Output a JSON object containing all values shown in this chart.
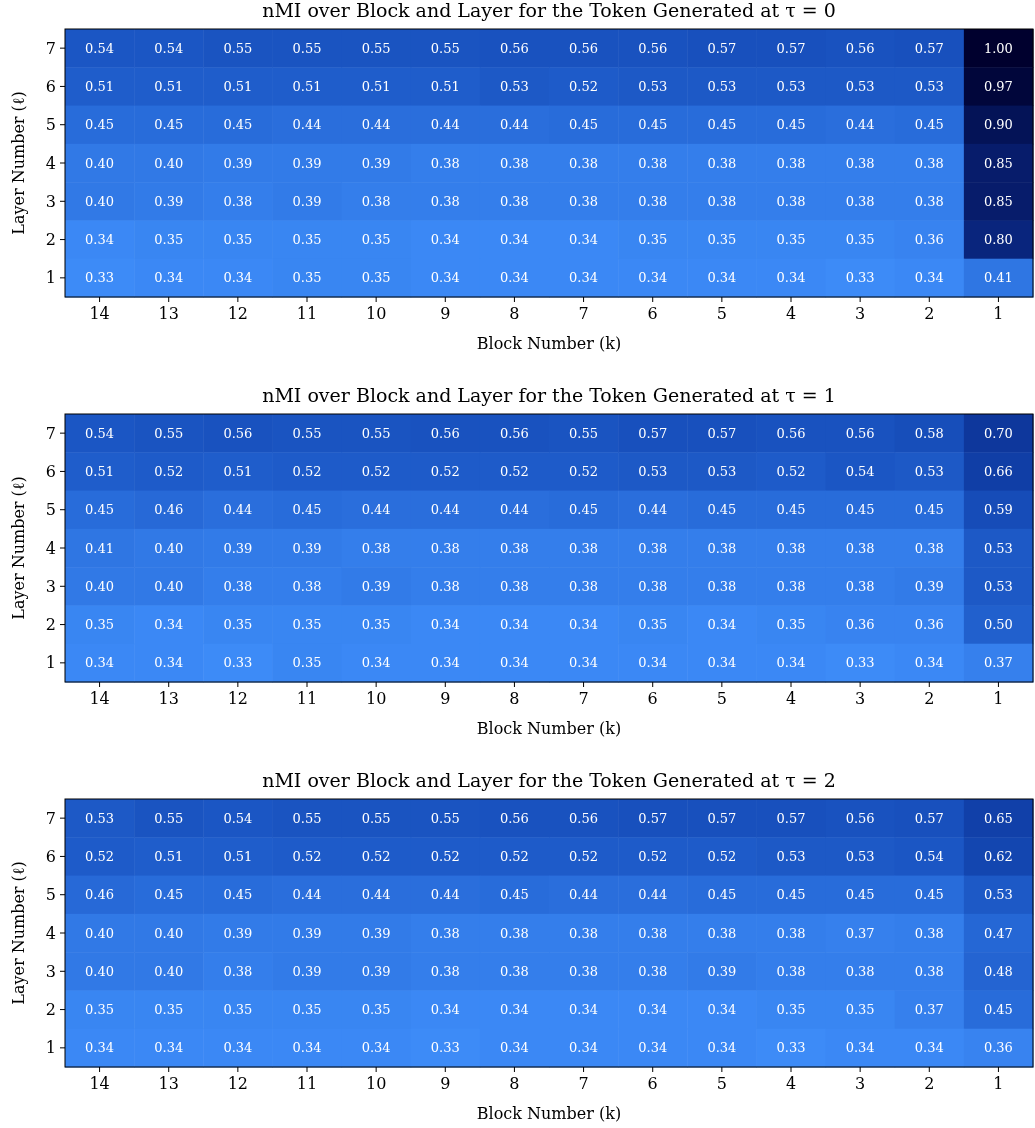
{
  "chart_data": [
    {
      "type": "heatmap",
      "title": "nMI over Block and Layer for the Token Generated at τ = 0",
      "xlabel": "Block Number (k)",
      "ylabel": "Layer Number (ℓ)",
      "categories": [
        "14",
        "13",
        "12",
        "11",
        "10",
        "9",
        "8",
        "7",
        "6",
        "5",
        "4",
        "3",
        "2",
        "1"
      ],
      "y_categories": [
        "7",
        "6",
        "5",
        "4",
        "3",
        "2",
        "1"
      ],
      "data_labels": true,
      "cells": [
        [
          0.54,
          0.54,
          0.55,
          0.55,
          0.55,
          0.55,
          0.56,
          0.56,
          0.56,
          0.57,
          0.57,
          0.56,
          0.57,
          1.0
        ],
        [
          0.51,
          0.51,
          0.51,
          0.51,
          0.51,
          0.51,
          0.53,
          0.52,
          0.53,
          0.53,
          0.53,
          0.53,
          0.53,
          0.97
        ],
        [
          0.45,
          0.45,
          0.45,
          0.44,
          0.44,
          0.44,
          0.44,
          0.45,
          0.45,
          0.45,
          0.45,
          0.44,
          0.45,
          0.9
        ],
        [
          0.4,
          0.4,
          0.39,
          0.39,
          0.39,
          0.38,
          0.38,
          0.38,
          0.38,
          0.38,
          0.38,
          0.38,
          0.38,
          0.85
        ],
        [
          0.4,
          0.39,
          0.38,
          0.39,
          0.38,
          0.38,
          0.38,
          0.38,
          0.38,
          0.38,
          0.38,
          0.38,
          0.38,
          0.85
        ],
        [
          0.34,
          0.35,
          0.35,
          0.35,
          0.35,
          0.34,
          0.34,
          0.34,
          0.35,
          0.35,
          0.35,
          0.35,
          0.36,
          0.8
        ],
        [
          0.33,
          0.34,
          0.34,
          0.35,
          0.35,
          0.34,
          0.34,
          0.34,
          0.34,
          0.34,
          0.34,
          0.33,
          0.34,
          0.41
        ]
      ],
      "cell_labels": [
        [
          "0.54",
          "0.54",
          "0.55",
          "0.55",
          "0.55",
          "0.55",
          "0.56",
          "0.56",
          "0.56",
          "0.57",
          "0.57",
          "0.56",
          "0.57",
          "1.00"
        ],
        [
          "0.51",
          "0.51",
          "0.51",
          "0.51",
          "0.51",
          "0.51",
          "0.53",
          "0.52",
          "0.53",
          "0.53",
          "0.53",
          "0.53",
          "0.53",
          "0.97"
        ],
        [
          "0.45",
          "0.45",
          "0.45",
          "0.44",
          "0.44",
          "0.44",
          "0.44",
          "0.45",
          "0.45",
          "0.45",
          "0.45",
          "0.44",
          "0.45",
          "0.90"
        ],
        [
          "0.40",
          "0.40",
          "0.39",
          "0.39",
          "0.39",
          "0.38",
          "0.38",
          "0.38",
          "0.38",
          "0.38",
          "0.38",
          "0.38",
          "0.38",
          "0.85"
        ],
        [
          "0.40",
          "0.39",
          "0.38",
          "0.39",
          "0.38",
          "0.38",
          "0.38",
          "0.38",
          "0.38",
          "0.38",
          "0.38",
          "0.38",
          "0.38",
          "0.85"
        ],
        [
          "0.34",
          "0.35",
          "0.35",
          "0.35",
          "0.35",
          "0.34",
          "0.34",
          "0.34",
          "0.35",
          "0.35",
          "0.35",
          "0.35",
          "0.36",
          "0.80"
        ],
        [
          "0.33",
          "0.34",
          "0.34",
          "0.35",
          "0.35",
          "0.34",
          "0.34",
          "0.34",
          "0.34",
          "0.34",
          "0.34",
          "0.33",
          "0.34",
          "0.41"
        ]
      ]
    },
    {
      "type": "heatmap",
      "title": "nMI over Block and Layer for the Token Generated at τ = 1",
      "xlabel": "Block Number (k)",
      "ylabel": "Layer Number (ℓ)",
      "categories": [
        "14",
        "13",
        "12",
        "11",
        "10",
        "9",
        "8",
        "7",
        "6",
        "5",
        "4",
        "3",
        "2",
        "1"
      ],
      "y_categories": [
        "7",
        "6",
        "5",
        "4",
        "3",
        "2",
        "1"
      ],
      "data_labels": true,
      "cells": [
        [
          0.54,
          0.55,
          0.56,
          0.55,
          0.55,
          0.56,
          0.56,
          0.55,
          0.57,
          0.57,
          0.56,
          0.56,
          0.58,
          0.7
        ],
        [
          0.51,
          0.52,
          0.51,
          0.52,
          0.52,
          0.52,
          0.52,
          0.52,
          0.53,
          0.53,
          0.52,
          0.54,
          0.53,
          0.66
        ],
        [
          0.45,
          0.46,
          0.44,
          0.45,
          0.44,
          0.44,
          0.44,
          0.45,
          0.44,
          0.45,
          0.45,
          0.45,
          0.45,
          0.59
        ],
        [
          0.41,
          0.4,
          0.39,
          0.39,
          0.38,
          0.38,
          0.38,
          0.38,
          0.38,
          0.38,
          0.38,
          0.38,
          0.38,
          0.53
        ],
        [
          0.4,
          0.4,
          0.38,
          0.38,
          0.39,
          0.38,
          0.38,
          0.38,
          0.38,
          0.38,
          0.38,
          0.38,
          0.39,
          0.53
        ],
        [
          0.35,
          0.34,
          0.35,
          0.35,
          0.35,
          0.34,
          0.34,
          0.34,
          0.35,
          0.34,
          0.35,
          0.36,
          0.36,
          0.5
        ],
        [
          0.34,
          0.34,
          0.33,
          0.35,
          0.34,
          0.34,
          0.34,
          0.34,
          0.34,
          0.34,
          0.34,
          0.33,
          0.34,
          0.37
        ]
      ],
      "cell_labels": [
        [
          "0.54",
          "0.55",
          "0.56",
          "0.55",
          "0.55",
          "0.56",
          "0.56",
          "0.55",
          "0.57",
          "0.57",
          "0.56",
          "0.56",
          "0.58",
          "0.70"
        ],
        [
          "0.51",
          "0.52",
          "0.51",
          "0.52",
          "0.52",
          "0.52",
          "0.52",
          "0.52",
          "0.53",
          "0.53",
          "0.52",
          "0.54",
          "0.53",
          "0.66"
        ],
        [
          "0.45",
          "0.46",
          "0.44",
          "0.45",
          "0.44",
          "0.44",
          "0.44",
          "0.45",
          "0.44",
          "0.45",
          "0.45",
          "0.45",
          "0.45",
          "0.59"
        ],
        [
          "0.41",
          "0.40",
          "0.39",
          "0.39",
          "0.38",
          "0.38",
          "0.38",
          "0.38",
          "0.38",
          "0.38",
          "0.38",
          "0.38",
          "0.38",
          "0.53"
        ],
        [
          "0.40",
          "0.40",
          "0.38",
          "0.38",
          "0.39",
          "0.38",
          "0.38",
          "0.38",
          "0.38",
          "0.38",
          "0.38",
          "0.38",
          "0.39",
          "0.53"
        ],
        [
          "0.35",
          "0.34",
          "0.35",
          "0.35",
          "0.35",
          "0.34",
          "0.34",
          "0.34",
          "0.35",
          "0.34",
          "0.35",
          "0.36",
          "0.36",
          "0.50"
        ],
        [
          "0.34",
          "0.34",
          "0.33",
          "0.35",
          "0.34",
          "0.34",
          "0.34",
          "0.34",
          "0.34",
          "0.34",
          "0.34",
          "0.33",
          "0.34",
          "0.37"
        ]
      ]
    },
    {
      "type": "heatmap",
      "title": "nMI over Block and Layer for the Token Generated at τ = 2",
      "xlabel": "Block Number (k)",
      "ylabel": "Layer Number (ℓ)",
      "categories": [
        "14",
        "13",
        "12",
        "11",
        "10",
        "9",
        "8",
        "7",
        "6",
        "5",
        "4",
        "3",
        "2",
        "1"
      ],
      "y_categories": [
        "7",
        "6",
        "5",
        "4",
        "3",
        "2",
        "1"
      ],
      "data_labels": true,
      "cells": [
        [
          0.53,
          0.55,
          0.54,
          0.55,
          0.55,
          0.55,
          0.56,
          0.56,
          0.57,
          0.57,
          0.57,
          0.56,
          0.57,
          0.65
        ],
        [
          0.52,
          0.51,
          0.51,
          0.52,
          0.52,
          0.52,
          0.52,
          0.52,
          0.52,
          0.52,
          0.53,
          0.53,
          0.54,
          0.62
        ],
        [
          0.46,
          0.45,
          0.45,
          0.44,
          0.44,
          0.44,
          0.45,
          0.44,
          0.44,
          0.45,
          0.45,
          0.45,
          0.45,
          0.53
        ],
        [
          0.4,
          0.4,
          0.39,
          0.39,
          0.39,
          0.38,
          0.38,
          0.38,
          0.38,
          0.38,
          0.38,
          0.37,
          0.38,
          0.47
        ],
        [
          0.4,
          0.4,
          0.38,
          0.39,
          0.39,
          0.38,
          0.38,
          0.38,
          0.38,
          0.39,
          0.38,
          0.38,
          0.38,
          0.48
        ],
        [
          0.35,
          0.35,
          0.35,
          0.35,
          0.35,
          0.34,
          0.34,
          0.34,
          0.34,
          0.34,
          0.35,
          0.35,
          0.37,
          0.45
        ],
        [
          0.34,
          0.34,
          0.34,
          0.34,
          0.34,
          0.33,
          0.34,
          0.34,
          0.34,
          0.34,
          0.33,
          0.34,
          0.34,
          0.36
        ]
      ],
      "cell_labels": [
        [
          "0.53",
          "0.55",
          "0.54",
          "0.55",
          "0.55",
          "0.55",
          "0.56",
          "0.56",
          "0.57",
          "0.57",
          "0.57",
          "0.56",
          "0.57",
          "0.65"
        ],
        [
          "0.52",
          "0.51",
          "0.51",
          "0.52",
          "0.52",
          "0.52",
          "0.52",
          "0.52",
          "0.52",
          "0.52",
          "0.53",
          "0.53",
          "0.54",
          "0.62"
        ],
        [
          "0.46",
          "0.45",
          "0.45",
          "0.44",
          "0.44",
          "0.44",
          "0.45",
          "0.44",
          "0.44",
          "0.45",
          "0.45",
          "0.45",
          "0.45",
          "0.53"
        ],
        [
          "0.40",
          "0.40",
          "0.39",
          "0.39",
          "0.39",
          "0.38",
          "0.38",
          "0.38",
          "0.38",
          "0.38",
          "0.38",
          "0.37",
          "0.38",
          "0.47"
        ],
        [
          "0.40",
          "0.40",
          "0.38",
          "0.39",
          "0.39",
          "0.38",
          "0.38",
          "0.38",
          "0.38",
          "0.39",
          "0.38",
          "0.38",
          "0.38",
          "0.48"
        ],
        [
          "0.35",
          "0.35",
          "0.35",
          "0.35",
          "0.35",
          "0.34",
          "0.34",
          "0.34",
          "0.34",
          "0.34",
          "0.35",
          "0.35",
          "0.37",
          "0.45"
        ],
        [
          "0.34",
          "0.34",
          "0.34",
          "0.34",
          "0.34",
          "0.33",
          "0.34",
          "0.34",
          "0.34",
          "0.34",
          "0.33",
          "0.34",
          "0.34",
          "0.36"
        ]
      ]
    }
  ]
}
